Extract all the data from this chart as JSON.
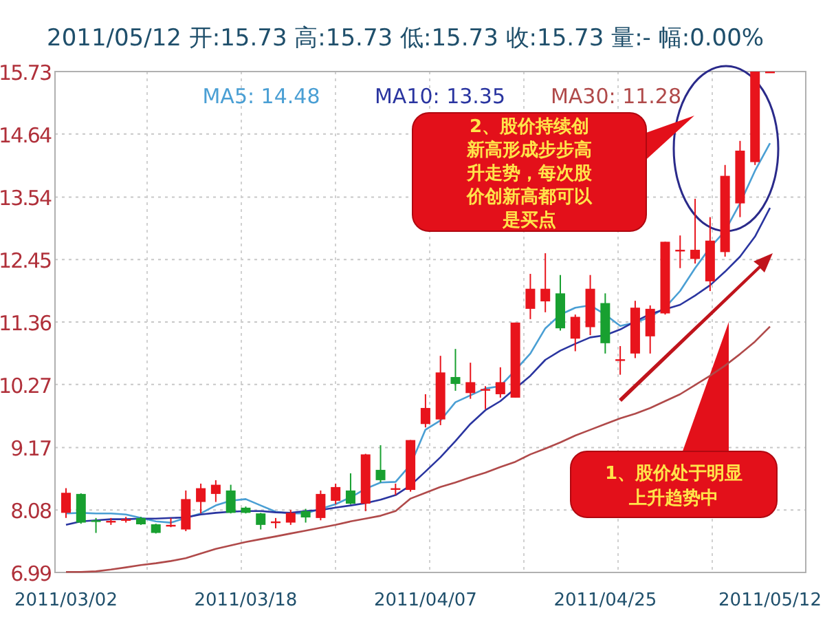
{
  "chart_data": {
    "type": "candlestick",
    "title": "2011/05/12 开:15.73 高:15.73 低:15.73 收:15.73 量:- 幅:0.00%",
    "categories": [
      "2011/03/02",
      null,
      null,
      null,
      null,
      null,
      null,
      null,
      null,
      null,
      null,
      null,
      "2011/03/18",
      null,
      null,
      null,
      null,
      null,
      null,
      null,
      null,
      null,
      null,
      null,
      "2011/04/07",
      null,
      null,
      null,
      null,
      null,
      null,
      null,
      null,
      null,
      null,
      null,
      "2011/04/25",
      null,
      null,
      null,
      null,
      null,
      null,
      null,
      null,
      null,
      null,
      "2011/05/12"
    ],
    "ohlc": [
      [
        8.03,
        8.46,
        7.94,
        8.38
      ],
      [
        8.36,
        8.37,
        7.84,
        7.86
      ],
      [
        7.9,
        7.94,
        7.68,
        7.89
      ],
      [
        7.89,
        7.94,
        7.82,
        7.89
      ],
      [
        7.92,
        7.96,
        7.86,
        7.92
      ],
      [
        7.94,
        7.96,
        7.82,
        7.83
      ],
      [
        7.83,
        7.84,
        7.67,
        7.68
      ],
      [
        7.81,
        7.94,
        7.78,
        7.82
      ],
      [
        7.74,
        8.42,
        7.71,
        8.27
      ],
      [
        8.22,
        8.54,
        8.02,
        8.46
      ],
      [
        8.36,
        8.6,
        8.22,
        8.52
      ],
      [
        8.42,
        8.52,
        8.02,
        8.03
      ],
      [
        8.12,
        8.14,
        8.02,
        8.03
      ],
      [
        8.02,
        8.03,
        7.74,
        7.82
      ],
      [
        7.88,
        7.94,
        7.76,
        7.88
      ],
      [
        7.86,
        8.08,
        7.82,
        8.03
      ],
      [
        8.06,
        8.1,
        7.86,
        7.95
      ],
      [
        7.94,
        8.42,
        7.9,
        8.36
      ],
      [
        8.24,
        8.54,
        8.18,
        8.48
      ],
      [
        8.42,
        8.72,
        8.18,
        8.19
      ],
      [
        8.19,
        9.06,
        8.06,
        9.05
      ],
      [
        8.78,
        9.21,
        8.56,
        8.6
      ],
      [
        8.46,
        8.54,
        8.34,
        8.46
      ],
      [
        8.43,
        9.3,
        8.4,
        9.3
      ],
      [
        9.58,
        10.1,
        9.52,
        9.86
      ],
      [
        9.66,
        10.77,
        9.56,
        10.48
      ],
      [
        10.4,
        10.89,
        10.16,
        10.28
      ],
      [
        10.12,
        10.65,
        10.02,
        10.31
      ],
      [
        10.19,
        10.24,
        9.84,
        10.19
      ],
      [
        10.1,
        10.57,
        10.04,
        10.31
      ],
      [
        10.04,
        11.35,
        10.04,
        11.35
      ],
      [
        11.59,
        12.2,
        11.41,
        11.94
      ],
      [
        11.72,
        12.56,
        11.53,
        11.94
      ],
      [
        11.86,
        12.18,
        11.21,
        11.25
      ],
      [
        11.07,
        11.49,
        10.85,
        11.45
      ],
      [
        11.27,
        12.18,
        11.13,
        11.94
      ],
      [
        11.69,
        11.86,
        10.81,
        10.99
      ],
      [
        10.71,
        10.94,
        10.44,
        10.71
      ],
      [
        10.81,
        11.73,
        10.73,
        11.61
      ],
      [
        11.11,
        11.65,
        10.81,
        11.59
      ],
      [
        11.51,
        12.76,
        11.49,
        12.76
      ],
      [
        12.62,
        12.87,
        12.3,
        12.62
      ],
      [
        12.46,
        13.51,
        12.38,
        12.62
      ],
      [
        12.07,
        13.19,
        11.9,
        12.78
      ],
      [
        12.58,
        14.1,
        12.5,
        13.91
      ],
      [
        13.43,
        14.52,
        13.19,
        14.35
      ],
      [
        14.15,
        15.73,
        14.1,
        15.73
      ],
      [
        15.73,
        15.73,
        15.73,
        15.73
      ]
    ],
    "series": [
      {
        "name": "MA5: 14.48",
        "type": "line",
        "color": "#4a9fd4",
        "values": [
          8.02,
          8.03,
          8.02,
          8.02,
          8.0,
          7.94,
          7.88,
          7.86,
          7.94,
          8.02,
          8.16,
          8.24,
          8.27,
          8.16,
          8.05,
          8.02,
          8.02,
          8.1,
          8.18,
          8.3,
          8.45,
          8.56,
          8.57,
          8.87,
          9.48,
          9.64,
          9.96,
          10.08,
          10.2,
          10.24,
          10.52,
          10.81,
          11.25,
          11.49,
          11.61,
          11.65,
          11.49,
          11.29,
          11.35,
          11.45,
          11.61,
          11.9,
          12.3,
          12.66,
          12.95,
          13.43,
          14.0,
          14.48
        ]
      },
      {
        "name": "MA10: 13.35",
        "type": "line",
        "color": "#2a35a0",
        "values": [
          7.82,
          7.88,
          7.9,
          7.92,
          7.92,
          7.93,
          7.93,
          7.94,
          7.95,
          8.0,
          8.03,
          8.05,
          8.06,
          8.06,
          8.04,
          8.03,
          8.06,
          8.08,
          8.12,
          8.16,
          8.2,
          8.26,
          8.34,
          8.51,
          8.75,
          9.0,
          9.28,
          9.58,
          9.82,
          9.98,
          10.2,
          10.42,
          10.7,
          10.86,
          10.98,
          11.09,
          11.13,
          11.23,
          11.37,
          11.5,
          11.58,
          11.66,
          11.82,
          12.0,
          12.24,
          12.5,
          12.85,
          13.35
        ]
      },
      {
        "name": "MA30: 11.28",
        "type": "line",
        "color": "#b04a4a",
        "values": [
          7.0,
          7.0,
          7.01,
          7.04,
          7.08,
          7.12,
          7.15,
          7.19,
          7.24,
          7.32,
          7.4,
          7.46,
          7.52,
          7.57,
          7.62,
          7.67,
          7.72,
          7.77,
          7.82,
          7.88,
          7.93,
          7.98,
          8.06,
          8.28,
          8.38,
          8.48,
          8.56,
          8.65,
          8.73,
          8.83,
          8.92,
          9.05,
          9.15,
          9.26,
          9.38,
          9.48,
          9.58,
          9.68,
          9.76,
          9.86,
          9.98,
          10.1,
          10.26,
          10.42,
          10.6,
          10.8,
          11.02,
          11.28
        ]
      }
    ],
    "ylim": [
      6.99,
      15.73
    ],
    "yticks": [
      6.99,
      8.08,
      9.17,
      10.27,
      11.36,
      12.45,
      13.54,
      14.64,
      15.73
    ],
    "grid": true,
    "legend": "top",
    "annotations": [
      "2、股价持续创新高形成步步高升走势，每次股价创新高都可以是买点",
      "1、股价处于明显上升趋势中"
    ]
  }
}
